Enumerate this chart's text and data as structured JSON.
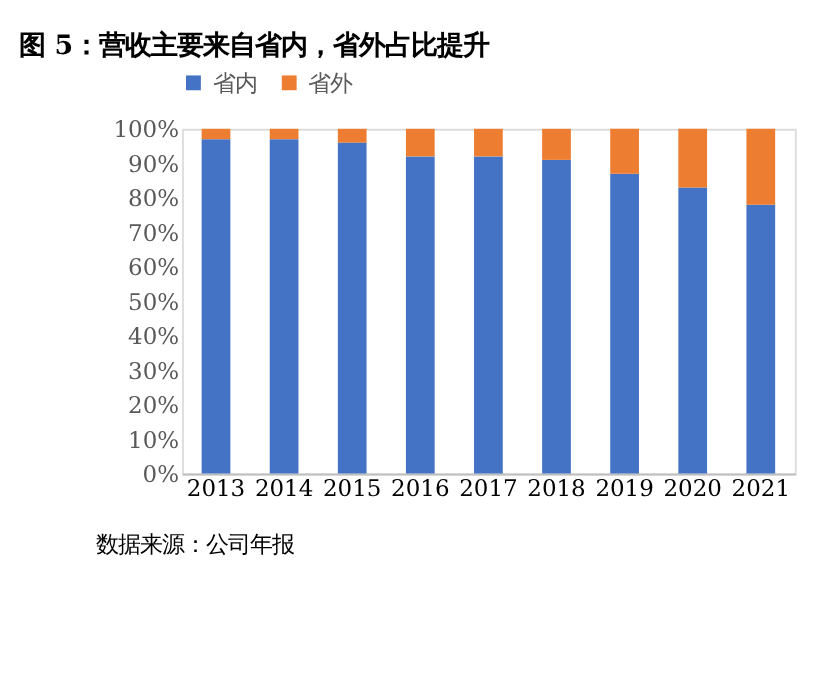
{
  "chart_data": {
    "type": "bar",
    "title": "图 5：营收主要来自省内，省外占比提升",
    "categories": [
      "2013",
      "2014",
      "2015",
      "2016",
      "2017",
      "2018",
      "2019",
      "2020",
      "2021"
    ],
    "series": [
      {
        "name": "省内",
        "color": "#4472c4",
        "values": [
          97,
          97,
          96,
          92,
          92,
          91,
          87,
          83,
          78
        ]
      },
      {
        "name": "省外",
        "color": "#ed7d31",
        "values": [
          3,
          3,
          4,
          8,
          8,
          9,
          13,
          17,
          22
        ]
      }
    ],
    "stacked": true,
    "ylim": [
      0,
      100
    ],
    "yticks": [
      {
        "value": 0,
        "label": "0%"
      },
      {
        "value": 10,
        "label": "10%"
      },
      {
        "value": 20,
        "label": "20%"
      },
      {
        "value": 30,
        "label": "30%"
      },
      {
        "value": 40,
        "label": "40%"
      },
      {
        "value": 50,
        "label": "50%"
      },
      {
        "value": 60,
        "label": "60%"
      },
      {
        "value": 70,
        "label": "70%"
      },
      {
        "value": 80,
        "label": "80%"
      },
      {
        "value": 90,
        "label": "90%"
      },
      {
        "value": 100,
        "label": "100%"
      }
    ],
    "grid": false,
    "legend": "top",
    "annotations": [
      "数据来源：公司年报"
    ]
  }
}
